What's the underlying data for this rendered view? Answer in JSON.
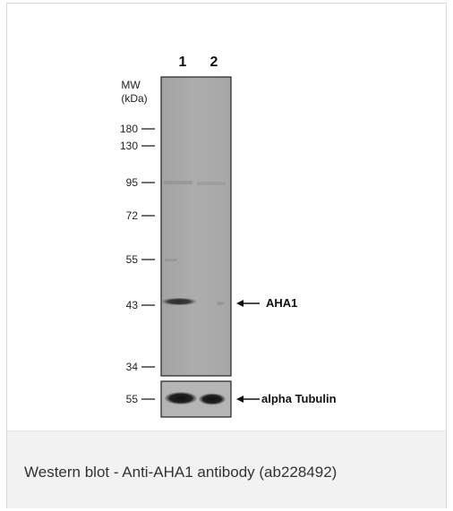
{
  "blot": {
    "lanes": [
      "1",
      "2"
    ],
    "mw_title_line1": "MW",
    "mw_title_line2": "(kDa)",
    "markers": [
      "180",
      "130",
      "95",
      "72",
      "55",
      "43",
      "34"
    ],
    "bands": {
      "main_label": "AHA1",
      "loading_marker": "55",
      "loading_label": "alpha Tubulin"
    }
  },
  "caption": "Western blot - Anti-AHA1 antibody (ab228492)",
  "colors": {
    "membrane": "#a8a8a8",
    "band": "#1a1a1a",
    "caption_bg": "#f2f2f2"
  }
}
